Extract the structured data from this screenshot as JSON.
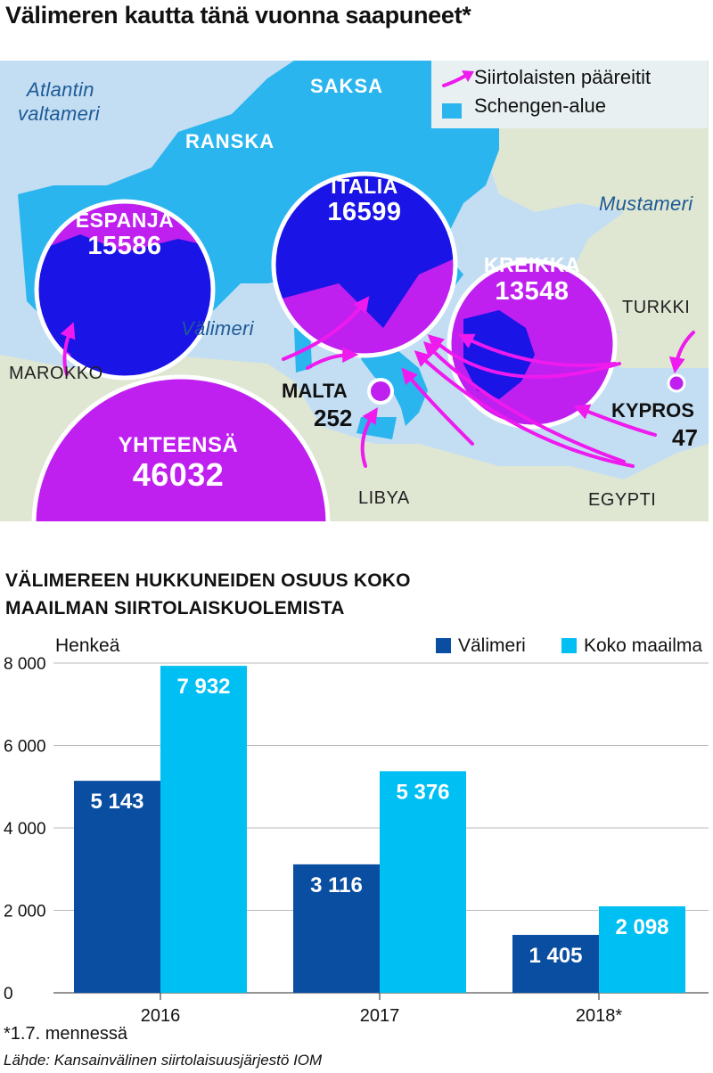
{
  "title": "Välimeren kautta tänä vuonna saapuneet*",
  "map": {
    "legend": {
      "routes": "Siirtolaisten pääreitit",
      "schengen": "Schengen-alue"
    },
    "colors": {
      "sea": "#c3def3",
      "land": "#dfe7d3",
      "schengen": "#2bb5ee",
      "circle": "#bf20ef",
      "circle_dark": "#1a14e6",
      "arrow": "#ee1aee"
    },
    "seas": {
      "atlantic_1": "Atlantin",
      "atlantic_2": "valtameri",
      "mediterranean": "Välimeri",
      "black_sea": "Mustameri"
    },
    "countries": {
      "saksa": "SAKSA",
      "ranska": "RANSKA",
      "turkki": "TURKKI",
      "marokko": "MAROKKO",
      "libya": "LIBYA",
      "egypti": "EGYPTI"
    },
    "arrivals": {
      "espanja": {
        "name": "ESPANJA",
        "value": "15586"
      },
      "italia": {
        "name": "ITALIA",
        "value": "16599"
      },
      "kreikka": {
        "name": "KREIKKA",
        "value": "13548"
      },
      "malta": {
        "name": "MALTA",
        "value": "252"
      },
      "kypros": {
        "name": "KYPROS",
        "value": "47"
      },
      "total": {
        "name": "YHTEENSÄ",
        "value": "46032"
      }
    }
  },
  "chart_data": {
    "type": "bar",
    "title": "VÄLIMEREEN HUKKUNEIDEN OSUUS KOKO MAAILMAN SIIRTOLAISKUOLEMISTA",
    "ylabel": "Henkeä",
    "categories": [
      "2016",
      "2017",
      "2018*"
    ],
    "series": [
      {
        "name": "Välimeri",
        "color": "#0a4ea2",
        "values": [
          5143,
          3116,
          1405
        ],
        "labels": [
          "5 143",
          "3 116",
          "1 405"
        ]
      },
      {
        "name": "Koko maailma",
        "color": "#00bff3",
        "values": [
          7932,
          5376,
          2098
        ],
        "labels": [
          "7 932",
          "5 376",
          "2 098"
        ]
      }
    ],
    "ylim": [
      0,
      8000
    ],
    "yticks": [
      0,
      2000,
      4000,
      6000,
      8000
    ],
    "ytick_labels": [
      "0",
      "2 000",
      "4 000",
      "6 000",
      "8 000"
    ],
    "grid": true
  },
  "footnote": "*1.7. mennessä",
  "source": "Lähde: Kansainvälinen siirtolaisuusjärjestö IOM"
}
